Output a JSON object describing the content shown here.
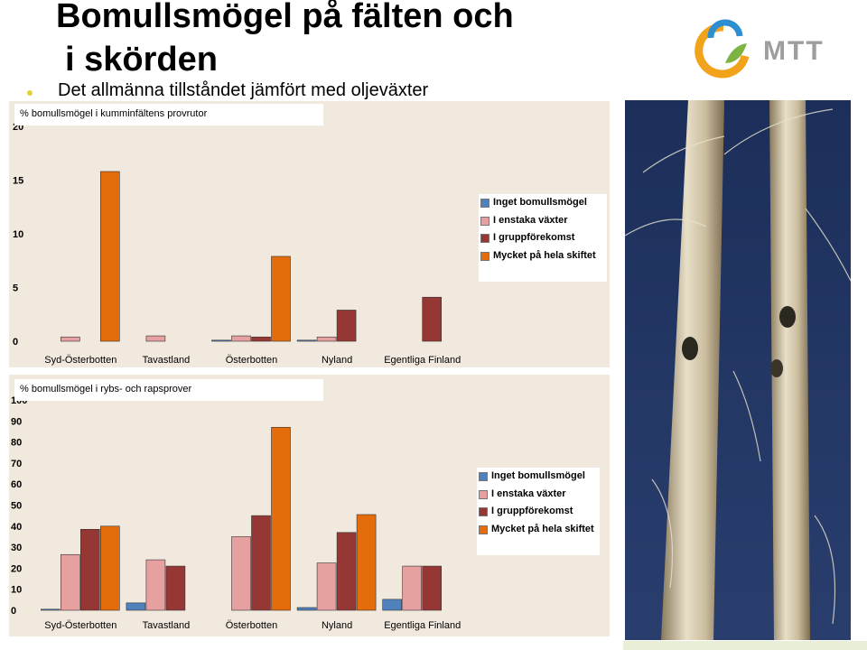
{
  "slide": {
    "title_line1": "Bomullsmögel på fälten och",
    "title_line2": "i skörden",
    "subtitle": "Det allmänna tillståndet jämfört med oljeväxter",
    "logo_text": "MTT"
  },
  "colors": {
    "inget": "#4f81bd",
    "enstaka": "#e6a0a0",
    "grupp": "#953735",
    "mycket": "#e46c0a",
    "plot_bg": "#f2e9de"
  },
  "chart_data": [
    {
      "type": "bar",
      "title": "% bomullsmögel i kumminfältens provrutor",
      "categories": [
        "Syd-Österbotten",
        "Tavastland",
        "Österbotten",
        "Nyland",
        "Egentliga Finland"
      ],
      "series": [
        {
          "name": "Inget bomullsmögel",
          "values": [
            0,
            0,
            0.1,
            0.1,
            0
          ]
        },
        {
          "name": "I enstaka växter",
          "values": [
            0.4,
            0.5,
            0.5,
            0.4,
            0
          ]
        },
        {
          "name": "I gruppförekomst",
          "values": [
            0,
            0,
            0.4,
            2.9,
            4.1
          ]
        },
        {
          "name": "Mycket på hela skiftet",
          "values": [
            15.8,
            0,
            7.9,
            0,
            0
          ]
        }
      ],
      "ylim": [
        0,
        20
      ],
      "yticks": [
        0,
        5,
        10,
        15,
        20
      ],
      "grid": false,
      "legend_position": "right"
    },
    {
      "type": "bar",
      "title": "% bomullsmögel i rybs- och rapsprover",
      "categories": [
        "Syd-Österbotten",
        "Tavastland",
        "Österbotten",
        "Nyland",
        "Egentliga Finland"
      ],
      "series": [
        {
          "name": "Inget bomullsmögel",
          "values": [
            0.5,
            3.5,
            0,
            1.3,
            5.2
          ]
        },
        {
          "name": "I enstaka växter",
          "values": [
            26.5,
            24,
            35,
            22.5,
            21
          ]
        },
        {
          "name": "I gruppförekomst",
          "values": [
            38.5,
            21,
            45,
            37,
            21
          ]
        },
        {
          "name": "Mycket på hela skiftet",
          "values": [
            40,
            0,
            87,
            45.5,
            0
          ]
        }
      ],
      "ylim": [
        0,
        100
      ],
      "yticks": [
        0,
        10,
        20,
        30,
        40,
        50,
        60,
        70,
        80,
        90,
        100
      ],
      "grid": false,
      "legend_position": "right"
    }
  ]
}
